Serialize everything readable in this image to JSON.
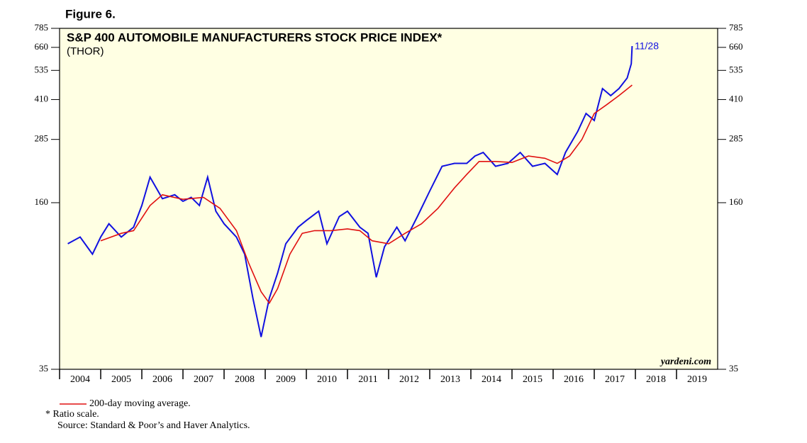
{
  "figure_label": "Figure 6.",
  "chart_data": {
    "type": "line",
    "title": "S&P 400 AUTOMOBILE MANUFACTURERS STOCK PRICE INDEX*",
    "subtitle": "(THOR)",
    "log_scale": true,
    "xlim": [
      2004,
      2020
    ],
    "xticks": [
      {
        "value": 2004,
        "label": "2004"
      },
      {
        "value": 2005,
        "label": "2005"
      },
      {
        "value": 2006,
        "label": "2006"
      },
      {
        "value": 2007,
        "label": "2007"
      },
      {
        "value": 2008,
        "label": "2008"
      },
      {
        "value": 2009,
        "label": "2009"
      },
      {
        "value": 2010,
        "label": "2010"
      },
      {
        "value": 2011,
        "label": "2011"
      },
      {
        "value": 2012,
        "label": "2012"
      },
      {
        "value": 2013,
        "label": "2013"
      },
      {
        "value": 2014,
        "label": "2014"
      },
      {
        "value": 2015,
        "label": "2015"
      },
      {
        "value": 2016,
        "label": "2016"
      },
      {
        "value": 2017,
        "label": "2017"
      },
      {
        "value": 2018,
        "label": "2018"
      },
      {
        "value": 2019,
        "label": "2019"
      }
    ],
    "ylim": [
      35,
      785
    ],
    "yticks": [
      35,
      160,
      285,
      410,
      535,
      660,
      785
    ],
    "series": [
      {
        "color": "#1010e0",
        "x": [
          2004.2,
          2004.5,
          2004.8,
          2005.0,
          2005.2,
          2005.5,
          2005.8,
          2006.0,
          2006.2,
          2006.5,
          2006.8,
          2007.0,
          2007.2,
          2007.4,
          2007.6,
          2007.8,
          2008.0,
          2008.3,
          2008.5,
          2008.7,
          2008.9,
          2009.1,
          2009.3,
          2009.5,
          2009.8,
          2010.0,
          2010.3,
          2010.5,
          2010.8,
          2011.0,
          2011.3,
          2011.5,
          2011.7,
          2011.9,
          2012.2,
          2012.4,
          2012.7,
          2013.0,
          2013.3,
          2013.6,
          2013.9,
          2014.1,
          2014.3,
          2014.6,
          2014.9,
          2015.2,
          2015.5,
          2015.8,
          2016.1,
          2016.3,
          2016.6,
          2016.8,
          2017.0,
          2017.2,
          2017.4,
          2017.6,
          2017.8,
          2017.9,
          2017.92
        ],
        "values": [
          110,
          117,
          100,
          117,
          132,
          117,
          128,
          156,
          202,
          166,
          172,
          162,
          168,
          156,
          202,
          148,
          132,
          117,
          100,
          67,
          47,
          67,
          84,
          110,
          128,
          136,
          148,
          110,
          141,
          148,
          128,
          121,
          81,
          107,
          128,
          113,
          141,
          178,
          223,
          229,
          229,
          245,
          253,
          223,
          229,
          253,
          223,
          229,
          207,
          253,
          307,
          361,
          339,
          453,
          425,
          453,
          499,
          568,
          668
        ]
      },
      {
        "name": "200-day moving average.",
        "color": "#e01010",
        "x": [
          2005.0,
          2005.5,
          2005.8,
          2006.2,
          2006.5,
          2007.0,
          2007.5,
          2007.9,
          2008.3,
          2008.6,
          2008.9,
          2009.1,
          2009.3,
          2009.6,
          2009.9,
          2010.2,
          2010.6,
          2011.0,
          2011.3,
          2011.6,
          2012.0,
          2012.4,
          2012.8,
          2013.2,
          2013.6,
          2013.9,
          2014.2,
          2014.6,
          2015.0,
          2015.4,
          2015.8,
          2016.1,
          2016.4,
          2016.7,
          2017.0,
          2017.3,
          2017.6,
          2017.92
        ],
        "values": [
          113,
          121,
          124,
          156,
          172,
          165,
          168,
          152,
          124,
          92,
          71,
          64,
          73,
          100,
          121,
          124,
          124,
          126,
          124,
          113,
          110,
          121,
          132,
          152,
          183,
          207,
          233,
          233,
          231,
          245,
          240,
          229,
          245,
          285,
          361,
          391,
          425,
          468
        ]
      }
    ],
    "annotations": [
      "11/28",
      "yardeni.com"
    ]
  },
  "footnotes": [
    "* Ratio scale.",
    "Source: Standard & Poor’s and Haver Analytics."
  ]
}
